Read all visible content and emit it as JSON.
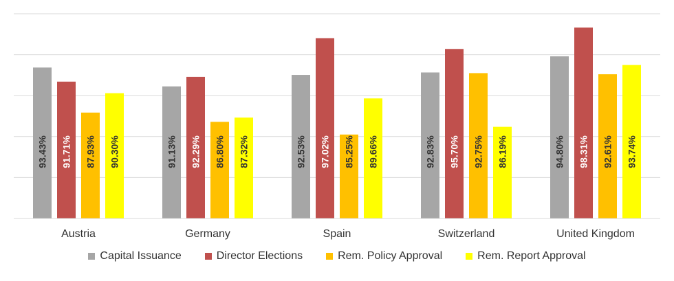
{
  "chart_data": {
    "type": "bar",
    "title": "",
    "xlabel": "",
    "ylabel": "",
    "ylim": [
      75,
      100
    ],
    "grid": true,
    "legend_position": "bottom",
    "categories": [
      "Austria",
      "Germany",
      "Spain",
      "Switzerland",
      "United Kingdom"
    ],
    "series": [
      {
        "name": "Capital Issuance",
        "color": "#a6a6a6",
        "values": [
          93.43,
          91.13,
          92.53,
          92.83,
          94.8
        ],
        "labels": [
          "93.43%",
          "91.13%",
          "92.53%",
          "92.83%",
          "94.80%"
        ]
      },
      {
        "name": "Director Elections",
        "color": "#c0504d",
        "values": [
          91.71,
          92.29,
          97.02,
          95.7,
          98.31
        ],
        "labels": [
          "91.71%",
          "92.29%",
          "97.02%",
          "95.70%",
          "98.31%"
        ]
      },
      {
        "name": "Rem. Policy Approval",
        "color": "#ffc000",
        "values": [
          87.93,
          86.8,
          85.25,
          92.75,
          92.61
        ],
        "labels": [
          "87.93%",
          "86.80%",
          "85.25%",
          "92.75%",
          "92.61%"
        ]
      },
      {
        "name": "Rem. Report Approval",
        "color": "#ffff00",
        "values": [
          90.3,
          87.32,
          89.66,
          86.19,
          93.74
        ],
        "labels": [
          "90.30%",
          "87.32%",
          "89.66%",
          "86.19%",
          "93.74%"
        ]
      }
    ]
  }
}
